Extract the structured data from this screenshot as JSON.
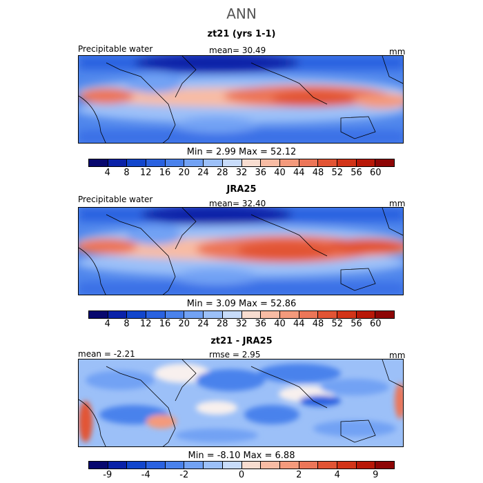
{
  "title": "ANN",
  "panels": [
    {
      "title": "zt21 (yrs 1-1)",
      "left_label": "Precipitable water",
      "center_label": "mean=  30.49",
      "right_label": "mm",
      "minmax": "Min =    2.99  Max =   52.12",
      "scale": "abs"
    },
    {
      "title": "JRA25",
      "left_label": "Precipitable water",
      "center_label": "mean=  32.40",
      "right_label": "mm",
      "minmax": "Min =    3.09  Max =   52.86",
      "scale": "abs"
    },
    {
      "title": "zt21 - JRA25",
      "left_label": "mean =   -2.21",
      "center_label": "rmse =     2.95",
      "right_label": "mm",
      "minmax": "Min =   -8.10  Max =    6.88",
      "scale": "diff"
    }
  ],
  "colorbar": {
    "colors": [
      "#08086e",
      "#0a22a8",
      "#1246cc",
      "#2a62e0",
      "#4a82ec",
      "#72a2f4",
      "#9cc0f8",
      "#c8dcfa",
      "#f8ddd0",
      "#f8bca4",
      "#f49a7c",
      "#ec7658",
      "#e25434",
      "#d23418",
      "#b81808",
      "#8e0606"
    ],
    "abs_ticks": [
      "4",
      "8",
      "12",
      "16",
      "20",
      "24",
      "28",
      "32",
      "36",
      "40",
      "44",
      "48",
      "52",
      "56",
      "60"
    ],
    "diff_ticks": [
      "-9",
      "",
      "-4",
      "",
      "-2",
      "",
      "",
      "0",
      "",
      "",
      "2",
      "",
      "4",
      "",
      "9"
    ]
  }
}
